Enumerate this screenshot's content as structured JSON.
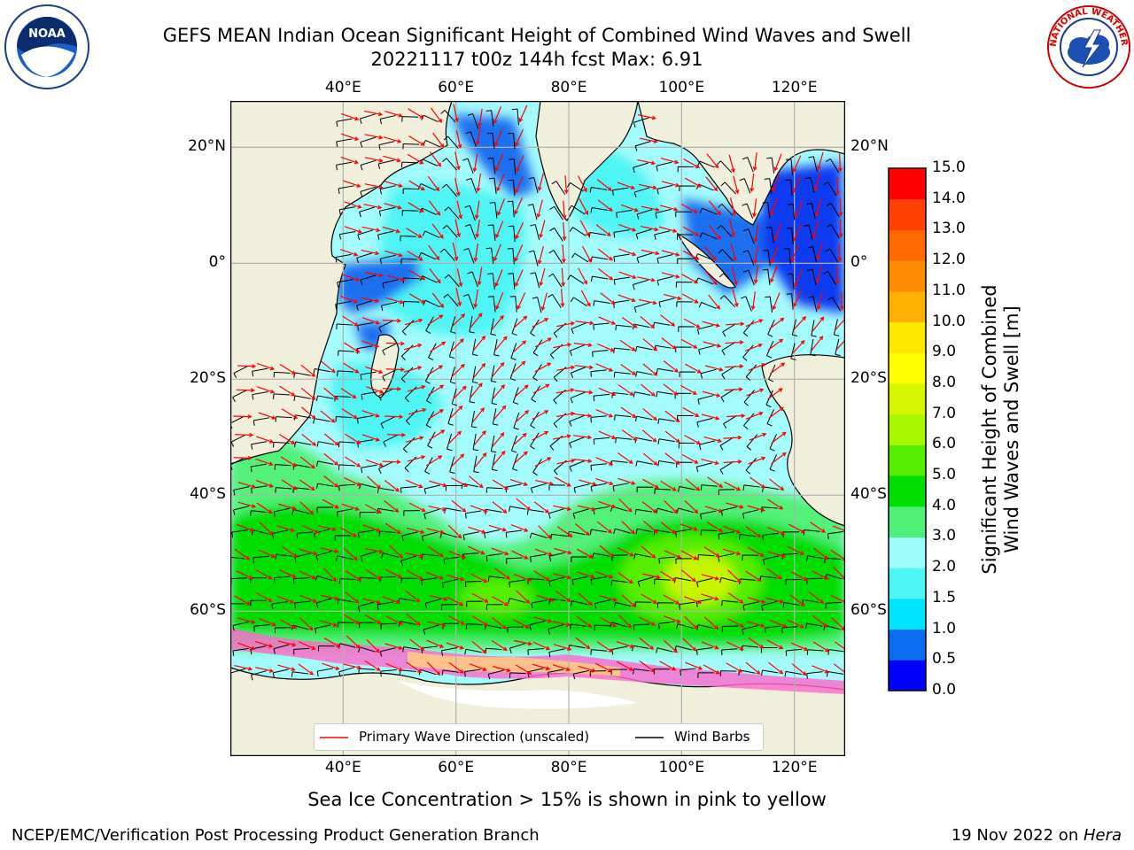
{
  "title": {
    "line1": "GEFS MEAN Indian Ocean Significant Height of Combined Wind Waves and Swell",
    "line2": "20221117 t00z 144h fcst   Max: 6.91"
  },
  "logos": {
    "left": "NOAA",
    "right": "NATIONAL WEATHER SERVICE"
  },
  "map": {
    "lon_ticks": [
      "40°E",
      "60°E",
      "80°E",
      "100°E",
      "120°E"
    ],
    "lat_ticks": [
      "20°N",
      "0°",
      "20°S",
      "40°S",
      "60°S"
    ],
    "lon_values": [
      40,
      60,
      80,
      100,
      120
    ],
    "lat_values": [
      20,
      0,
      -20,
      -40,
      -60
    ],
    "extent": {
      "lon_min": 20,
      "lon_max": 129,
      "lat_min": -85,
      "lat_max": 28
    }
  },
  "legend": {
    "wave_label": "Primary Wave Direction (unscaled)",
    "wind_label": "Wind Barbs",
    "wave_color": "#ff0000",
    "wind_color": "#000000"
  },
  "colorbar": {
    "label_line1": "Significant Height of Combined",
    "label_line2": "Wind Waves and Swell [m]",
    "ticks": [
      "15.0",
      "14.0",
      "13.0",
      "12.0",
      "11.0",
      "10.0",
      "9.0",
      "8.0",
      "7.0",
      "6.0",
      "5.0",
      "4.0",
      "3.0",
      "2.0",
      "1.5",
      "1.0",
      "0.5",
      "0.0"
    ],
    "colors": [
      "#0000ff",
      "#0a6cf0",
      "#00e5ff",
      "#4df5f5",
      "#a0fbfb",
      "#50f078",
      "#00dd00",
      "#55ee00",
      "#aaf500",
      "#d6f500",
      "#ffff00",
      "#ffe800",
      "#ffb000",
      "#ff8c00",
      "#ff6a00",
      "#ff4000",
      "#ff0000"
    ]
  },
  "footer": {
    "ice_note": "Sea Ice Concentration > 15% is shown in pink to yellow",
    "left": "NCEP/EMC/Verification Post Processing Product Generation Branch",
    "date": "19 Nov 2022 on ",
    "host": "Hera"
  }
}
